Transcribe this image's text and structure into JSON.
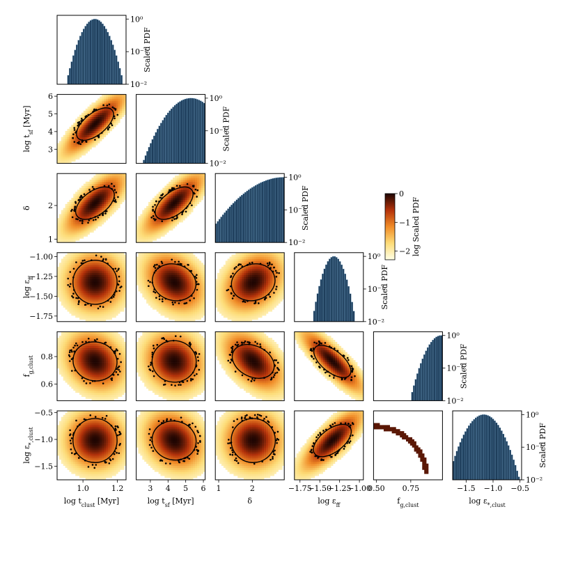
{
  "chart_data": {
    "type": "corner",
    "parameters": [
      {
        "name": "log_tclust",
        "label": "log t_clust [Myr]",
        "range": [
          0.85,
          1.25
        ],
        "ticks": [
          1.0,
          1.2
        ],
        "tick_labels": [
          "1.0",
          "1.2"
        ],
        "hist_peak": 1.07,
        "hist_width": 0.055
      },
      {
        "name": "log_tsf",
        "label": "log t_sf [Myr]",
        "range": [
          2.2,
          6.1
        ],
        "ticks": [
          3,
          4,
          5,
          6
        ],
        "tick_labels": [
          "3",
          "4",
          "5",
          "6"
        ],
        "hist_peak": 5.3,
        "hist_width": 0.9
      },
      {
        "name": "delta",
        "label": "δ",
        "range": [
          0.9,
          2.95
        ],
        "ticks": [
          1,
          2
        ],
        "tick_labels": [
          "1",
          "2"
        ],
        "hist_peak": 2.95,
        "hist_width": 0.75
      },
      {
        "name": "log_eff",
        "label": "log ε_ff",
        "range": [
          -1.82,
          -0.95
        ],
        "ticks": [
          -1.75,
          -1.5,
          -1.25,
          -1.0
        ],
        "tick_labels": [
          "−1.75",
          "−1.50",
          "−1.25",
          "−1.00"
        ],
        "hist_peak": -1.32,
        "hist_width": 0.09
      },
      {
        "name": "fg_clust",
        "label": "f_g,clust",
        "range": [
          0.48,
          0.98
        ],
        "ticks": [
          0.5,
          0.75
        ],
        "tick_labels": [
          "0.50",
          "0.75"
        ],
        "hist_peak": 0.97,
        "hist_width": 0.07
      },
      {
        "name": "log_estar_clust",
        "label": "log ε_*,clust",
        "range": [
          -1.75,
          -0.47
        ],
        "ticks": [
          -1.5,
          -1.0,
          -0.5
        ],
        "tick_labels": [
          "−1.5",
          "−1.0",
          "−0.5"
        ],
        "hist_peak": -1.17,
        "hist_width": 0.22
      }
    ],
    "y_tick_labels": {
      "log_tsf": [
        "3",
        "4",
        "5",
        "6"
      ],
      "delta": [
        "1",
        "2"
      ],
      "log_eff": [
        "−1.75",
        "−1.50",
        "−1.25",
        "−1.00"
      ],
      "fg_clust": [
        "0.6",
        "0.8"
      ],
      "log_estar_clust": [
        "−1.5",
        "−1.0",
        "−0.5"
      ]
    },
    "y_ticks": {
      "log_tsf": [
        3,
        4,
        5,
        6
      ],
      "delta": [
        1,
        2
      ],
      "log_eff": [
        -1.75,
        -1.5,
        -1.25,
        -1.0
      ],
      "fg_clust": [
        0.6,
        0.8
      ],
      "log_estar_clust": [
        -1.5,
        -1.0,
        -0.5
      ]
    },
    "x_axis_labels": [
      "log t_clust [Myr]",
      "log t_sf [Myr]",
      "δ",
      "log ε_ff",
      "f_g,clust",
      "log ε_*,clust"
    ],
    "y_axis_labels": [
      "log t_sf [Myr]",
      "δ",
      "log ε_ff",
      "f_g,clust",
      "log ε_*,clust"
    ],
    "hist_ylabel": "Scaled PDF",
    "hist_yscale": "log",
    "hist_ylim": [
      0.01,
      1.3
    ],
    "hist_yticks": [
      "10⁰",
      "10⁻¹",
      "10⁻²"
    ],
    "colorbar": {
      "label": "log Scaled PDF",
      "ticks": [
        "0",
        "−1",
        "−2"
      ],
      "range": [
        -2.3,
        0
      ],
      "colormap": "afmhot_r"
    },
    "contour_color": "#000000",
    "bar_color": "#1b3a57"
  }
}
